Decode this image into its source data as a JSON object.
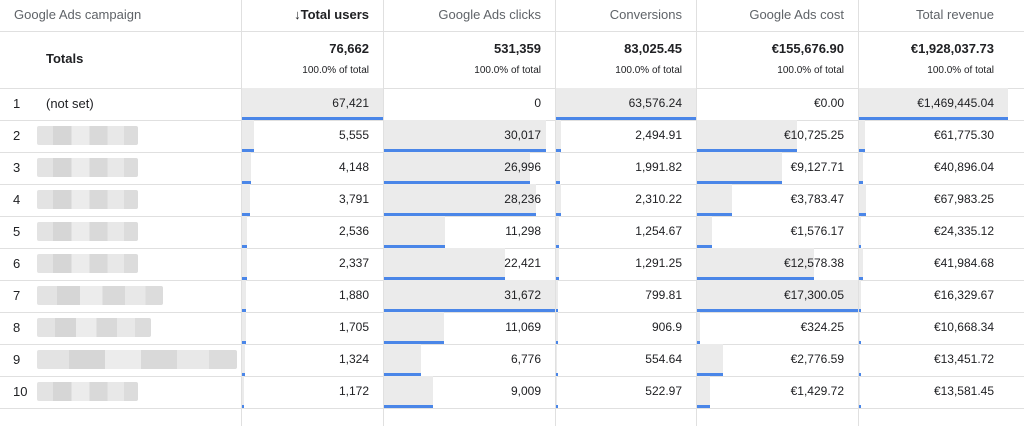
{
  "columns": [
    {
      "key": "campaign",
      "label": "Google Ads campaign"
    },
    {
      "key": "users",
      "label": "Total users",
      "sort_icon": "arrow-down-icon",
      "sort_glyph": "↓"
    },
    {
      "key": "clicks",
      "label": "Google Ads clicks"
    },
    {
      "key": "conversions",
      "label": "Conversions"
    },
    {
      "key": "cost",
      "label": "Google Ads cost"
    },
    {
      "key": "revenue",
      "label": "Total revenue"
    }
  ],
  "totals": {
    "label": "Totals",
    "values": [
      "76,662",
      "531,359",
      "83,025.45",
      "€155,676.90",
      "€1,928,037.73"
    ],
    "pct": [
      "100.0% of total",
      "100.0% of total",
      "100.0% of total",
      "100.0% of total",
      "100.0% of total"
    ]
  },
  "rows": [
    {
      "index": "1",
      "campaign": "(not set)",
      "values": [
        "67,421",
        "0",
        "63,576.24",
        "€0.00",
        "€1,469,445.04"
      ]
    },
    {
      "index": "2",
      "campaign": "",
      "values": [
        "5,555",
        "30,017",
        "2,494.91",
        "€10,725.25",
        "€61,775.30"
      ]
    },
    {
      "index": "3",
      "campaign": "",
      "values": [
        "4,148",
        "26,996",
        "1,991.82",
        "€9,127.71",
        "€40,896.04"
      ]
    },
    {
      "index": "4",
      "campaign": "",
      "values": [
        "3,791",
        "28,236",
        "2,310.22",
        "€3,783.47",
        "€67,983.25"
      ]
    },
    {
      "index": "5",
      "campaign": "",
      "values": [
        "2,536",
        "11,298",
        "1,254.67",
        "€1,576.17",
        "€24,335.12"
      ]
    },
    {
      "index": "6",
      "campaign": "",
      "values": [
        "2,337",
        "22,421",
        "1,291.25",
        "€12,578.38",
        "€41,984.68"
      ]
    },
    {
      "index": "7",
      "campaign": "",
      "values": [
        "1,880",
        "31,672",
        "799.81",
        "€17,300.05",
        "€16,329.67"
      ]
    },
    {
      "index": "8",
      "campaign": "",
      "values": [
        "1,705",
        "11,069",
        "906.9",
        "€324.25",
        "€10,668.34"
      ]
    },
    {
      "index": "9",
      "campaign": "",
      "values": [
        "1,324",
        "6,776",
        "554.64",
        "€2,776.59",
        "€13,451.72"
      ]
    },
    {
      "index": "10",
      "campaign": "",
      "values": [
        "1,172",
        "9,009",
        "522.97",
        "€1,429.72",
        "€13,581.45"
      ]
    }
  ],
  "colors": {
    "bar": "#ebebeb",
    "underline": "#4a86e8",
    "grid": "#e0e0e0"
  }
}
